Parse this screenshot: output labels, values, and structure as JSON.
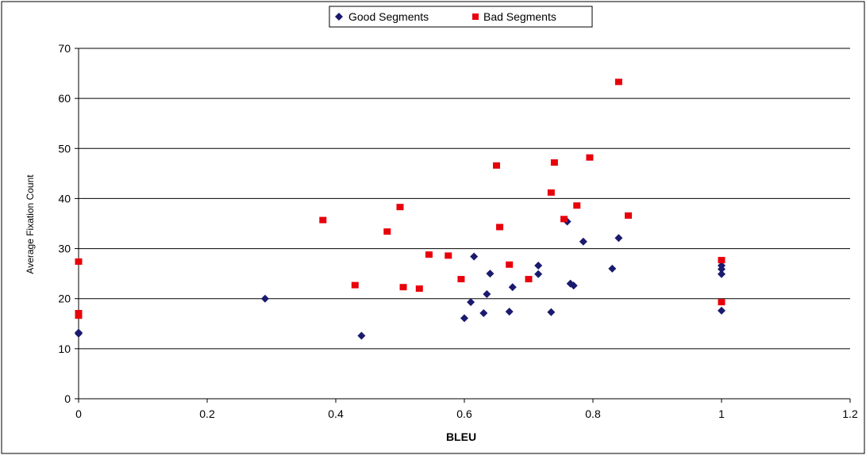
{
  "chart_data": {
    "type": "scatter",
    "title": "",
    "xlabel": "BLEU",
    "ylabel": "Average Fixation Count",
    "xlim": [
      0,
      1.2
    ],
    "ylim": [
      0,
      70
    ],
    "x_ticks": [
      "0",
      "0.2",
      "0.4",
      "0.6",
      "0.8",
      "1",
      "1.2"
    ],
    "y_ticks": [
      "0",
      "10",
      "20",
      "30",
      "40",
      "50",
      "60",
      "70"
    ],
    "grid": "horizontal",
    "legend_position": "top-center",
    "series": [
      {
        "name": "Good Segments",
        "color": "#1a1a6e",
        "marker": "diamond",
        "points": [
          [
            0,
            13.2
          ],
          [
            0,
            13.0
          ],
          [
            0.29,
            20.0
          ],
          [
            0.44,
            12.6
          ],
          [
            0.6,
            16.1
          ],
          [
            0.61,
            19.3
          ],
          [
            0.615,
            28.4
          ],
          [
            0.63,
            17.1
          ],
          [
            0.635,
            20.9
          ],
          [
            0.64,
            25.0
          ],
          [
            0.67,
            17.4
          ],
          [
            0.675,
            22.3
          ],
          [
            0.715,
            26.6
          ],
          [
            0.715,
            24.9
          ],
          [
            0.735,
            17.3
          ],
          [
            0.76,
            35.4
          ],
          [
            0.765,
            23.0
          ],
          [
            0.77,
            22.6
          ],
          [
            0.785,
            31.4
          ],
          [
            0.83,
            26.0
          ],
          [
            0.84,
            32.1
          ],
          [
            1.0,
            26.6
          ],
          [
            1.0,
            25.9
          ],
          [
            1.0,
            24.9
          ],
          [
            1.0,
            17.6
          ]
        ]
      },
      {
        "name": "Bad Segments",
        "color": "#e8000b",
        "marker": "square",
        "points": [
          [
            0,
            27.4
          ],
          [
            0,
            17.1
          ],
          [
            0,
            16.6
          ],
          [
            0.38,
            35.7
          ],
          [
            0.43,
            22.7
          ],
          [
            0.48,
            33.4
          ],
          [
            0.5,
            38.3
          ],
          [
            0.505,
            22.3
          ],
          [
            0.53,
            22.0
          ],
          [
            0.545,
            28.8
          ],
          [
            0.575,
            28.6
          ],
          [
            0.595,
            23.9
          ],
          [
            0.65,
            46.6
          ],
          [
            0.655,
            34.3
          ],
          [
            0.67,
            26.8
          ],
          [
            0.7,
            23.9
          ],
          [
            0.735,
            41.2
          ],
          [
            0.74,
            47.2
          ],
          [
            0.755,
            35.9
          ],
          [
            0.775,
            38.6
          ],
          [
            0.795,
            48.2
          ],
          [
            0.84,
            63.3
          ],
          [
            0.855,
            36.6
          ],
          [
            1.0,
            27.7
          ],
          [
            1.0,
            19.3
          ]
        ]
      }
    ]
  }
}
